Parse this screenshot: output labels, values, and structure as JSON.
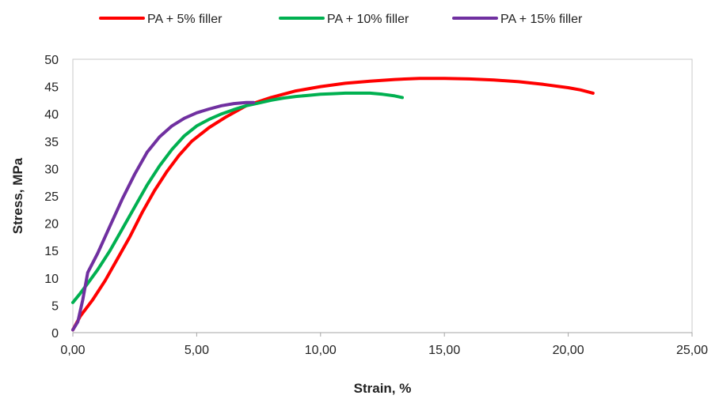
{
  "chart_data": {
    "type": "line",
    "xlabel": "Strain, %",
    "ylabel": "Stress, MPa",
    "xlim": [
      0,
      25
    ],
    "ylim": [
      0,
      50
    ],
    "x_ticks": [
      "0,00",
      "5,00",
      "10,00",
      "15,00",
      "20,00",
      "25,00"
    ],
    "y_ticks": [
      "0",
      "5",
      "10",
      "15",
      "20",
      "25",
      "30",
      "35",
      "40",
      "45",
      "50"
    ],
    "legend_position": "top",
    "grid": false,
    "series": [
      {
        "name": "PA + 5% filler",
        "color": "#ff0000",
        "x": [
          0,
          0.3,
          0.8,
          1.3,
          1.8,
          2.3,
          2.8,
          3.3,
          3.8,
          4.3,
          4.8,
          5.5,
          6.2,
          7.0,
          8.0,
          9.0,
          10.0,
          11.0,
          12.0,
          13.0,
          14.0,
          15.0,
          16.0,
          17.0,
          18.0,
          19.0,
          20.0,
          20.5,
          21.0
        ],
        "y": [
          0.5,
          3.0,
          6.0,
          9.5,
          13.5,
          17.5,
          22.0,
          26.0,
          29.5,
          32.5,
          35.0,
          37.5,
          39.5,
          41.5,
          43.0,
          44.2,
          45.0,
          45.6,
          46.0,
          46.3,
          46.5,
          46.5,
          46.4,
          46.2,
          45.9,
          45.4,
          44.8,
          44.4,
          43.8
        ]
      },
      {
        "name": "PA + 10% filler",
        "color": "#00b050",
        "x": [
          0,
          0.3,
          0.6,
          1.0,
          1.5,
          2.0,
          2.5,
          3.0,
          3.5,
          4.0,
          4.5,
          5.0,
          5.5,
          6.0,
          6.5,
          7.0,
          7.5,
          8.0,
          8.5,
          9.0,
          9.5,
          10.0,
          10.5,
          11.0,
          11.5,
          12.0,
          12.5,
          13.0,
          13.3
        ],
        "y": [
          5.5,
          7.2,
          9.0,
          11.5,
          15.0,
          19.0,
          23.0,
          27.0,
          30.5,
          33.5,
          36.0,
          37.8,
          39.0,
          40.0,
          40.8,
          41.5,
          42.0,
          42.5,
          42.9,
          43.2,
          43.4,
          43.6,
          43.7,
          43.8,
          43.8,
          43.8,
          43.6,
          43.3,
          43.0
        ]
      },
      {
        "name": "PA + 15% filler",
        "color": "#7030a0",
        "x": [
          0,
          0.2,
          0.4,
          0.6,
          1.0,
          1.5,
          2.0,
          2.5,
          3.0,
          3.5,
          4.0,
          4.5,
          5.0,
          5.5,
          6.0,
          6.5,
          7.0,
          7.3
        ],
        "y": [
          0.5,
          2.0,
          6.0,
          11.0,
          14.5,
          19.5,
          24.5,
          29.0,
          33.0,
          35.8,
          37.8,
          39.2,
          40.2,
          40.9,
          41.5,
          41.9,
          42.1,
          42.1
        ]
      }
    ]
  }
}
